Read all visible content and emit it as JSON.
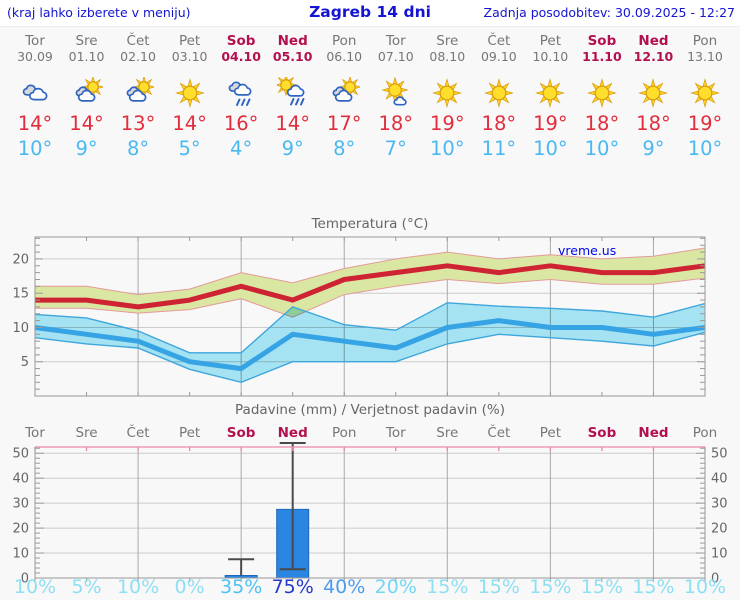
{
  "header": {
    "menu_hint": "(kraj lahko izberete v meniju)",
    "title": "Zagreb 14 dni",
    "last_update": "Zadnja posodobitev: 30.09.2025 - 12:27"
  },
  "watermark": "vreme.us",
  "colors": {
    "header_text": "#1414d2",
    "weekday": "#767676",
    "weekend": "#b3104f",
    "tmax": "#e02d3c",
    "tmin": "#4ab9f2",
    "chart_title": "#666666",
    "axis": "#999999",
    "grid_h": "#cccccc",
    "grid_v": "#aaaaaa",
    "temp_line_max": "#ce2333",
    "temp_band_max": "#d9e7a3",
    "temp_band_max_edge": "#e59a9a",
    "temp_line_min": "#36a3e4",
    "temp_band_min": "#a6e3f2",
    "temp_band_min_edge": "#3ea6dc",
    "bar_fill": "#2a85e3",
    "bar_edge": "#1f66bb",
    "whisker": "#4a4a4a",
    "precip_top_border": "#ea86aa",
    "watermark": "#0009e8"
  },
  "days": [
    {
      "name": "Tor",
      "date": "30.09",
      "weekend": false,
      "icon": "cloudy",
      "tmax": "14°",
      "tmin": "10°",
      "prob": "10%",
      "prob_color": "#8ddff3"
    },
    {
      "name": "Sre",
      "date": "01.10",
      "weekend": false,
      "icon": "partly-sunny",
      "tmax": "14°",
      "tmin": "9°",
      "prob": "5%",
      "prob_color": "#8ddff3"
    },
    {
      "name": "Čet",
      "date": "02.10",
      "weekend": false,
      "icon": "partly-sunny",
      "tmax": "13°",
      "tmin": "8°",
      "prob": "10%",
      "prob_color": "#8ddff3"
    },
    {
      "name": "Pet",
      "date": "03.10",
      "weekend": false,
      "icon": "sunny",
      "tmax": "14°",
      "tmin": "5°",
      "prob": "0%",
      "prob_color": "#8ddff3"
    },
    {
      "name": "Sob",
      "date": "04.10",
      "weekend": true,
      "icon": "rain",
      "tmax": "16°",
      "tmin": "4°",
      "prob": "35%",
      "prob_color": "#4cc2f5"
    },
    {
      "name": "Ned",
      "date": "05.10",
      "weekend": true,
      "icon": "sun-rain",
      "tmax": "14°",
      "tmin": "9°",
      "prob": "75%",
      "prob_color": "#2438cf"
    },
    {
      "name": "Pon",
      "date": "06.10",
      "weekend": false,
      "icon": "partly-sunny",
      "tmax": "17°",
      "tmin": "8°",
      "prob": "40%",
      "prob_color": "#4b9cec"
    },
    {
      "name": "Tor",
      "date": "07.10",
      "weekend": false,
      "icon": "mostly-sunny",
      "tmax": "18°",
      "tmin": "7°",
      "prob": "20%",
      "prob_color": "#72d7f2"
    },
    {
      "name": "Sre",
      "date": "08.10",
      "weekend": false,
      "icon": "sunny",
      "tmax": "19°",
      "tmin": "10°",
      "prob": "15%",
      "prob_color": "#8ddff3"
    },
    {
      "name": "Čet",
      "date": "09.10",
      "weekend": false,
      "icon": "sunny",
      "tmax": "18°",
      "tmin": "11°",
      "prob": "15%",
      "prob_color": "#8ddff3"
    },
    {
      "name": "Pet",
      "date": "10.10",
      "weekend": false,
      "icon": "sunny",
      "tmax": "19°",
      "tmin": "10°",
      "prob": "15%",
      "prob_color": "#8ddff3"
    },
    {
      "name": "Sob",
      "date": "11.10",
      "weekend": true,
      "icon": "sunny",
      "tmax": "18°",
      "tmin": "10°",
      "prob": "15%",
      "prob_color": "#8ddff3"
    },
    {
      "name": "Ned",
      "date": "12.10",
      "weekend": true,
      "icon": "sunny",
      "tmax": "18°",
      "tmin": "9°",
      "prob": "15%",
      "prob_color": "#8ddff3"
    },
    {
      "name": "Pon",
      "date": "13.10",
      "weekend": false,
      "icon": "sunny",
      "tmax": "19°",
      "tmin": "10°",
      "prob": "10%",
      "prob_color": "#8ddff3"
    }
  ],
  "chart_data": [
    {
      "type": "line",
      "title": "Temperatura (°C)",
      "ylim": [
        0,
        23.2
      ],
      "yticks": [
        5,
        10,
        15,
        20
      ],
      "grid": true,
      "categories": [
        "30.09",
        "01.10",
        "02.10",
        "03.10",
        "04.10",
        "05.10",
        "06.10",
        "07.10",
        "08.10",
        "09.10",
        "10.10",
        "11.10",
        "12.10",
        "13.10"
      ],
      "series": [
        {
          "name": "max",
          "values": [
            14,
            14,
            13,
            14,
            16,
            14,
            17,
            18,
            19,
            18,
            19,
            18,
            18,
            19
          ]
        },
        {
          "name": "min",
          "values": [
            10,
            9,
            8,
            5,
            4,
            9,
            8,
            7,
            10,
            11,
            10,
            10,
            9,
            10
          ]
        }
      ],
      "bands": {
        "max_upper": [
          16,
          16,
          14.8,
          15.6,
          18,
          16.5,
          18.6,
          20,
          21,
          20,
          20.6,
          20,
          20.4,
          21.6
        ],
        "max_lower": [
          12.8,
          12.8,
          12.1,
          12.6,
          14.2,
          11.5,
          14.8,
          16,
          17,
          16.4,
          17,
          16.3,
          16.3,
          17.2
        ],
        "min_upper": [
          11.9,
          11.4,
          9.5,
          6.3,
          6.3,
          13,
          10.4,
          9.6,
          13.6,
          13.1,
          12.8,
          12.4,
          11.5,
          13.5
        ],
        "min_lower": [
          8.5,
          7.6,
          7,
          3.9,
          2,
          5,
          5,
          5,
          7.6,
          9,
          8.5,
          8,
          7.3,
          9.3
        ]
      }
    },
    {
      "type": "bar",
      "title": "Padavine (mm) / Verjetnost padavin (%)",
      "ylim": [
        0,
        52.5
      ],
      "yticks": [
        0,
        10,
        20,
        30,
        40,
        50
      ],
      "grid": true,
      "categories": [
        "Tor",
        "Sre",
        "Čet",
        "Pet",
        "Sob",
        "Ned",
        "Pon",
        "Tor",
        "Sre",
        "Čet",
        "Pet",
        "Sob",
        "Ned",
        "Pon"
      ],
      "values": [
        0,
        0,
        0,
        0,
        1,
        27.5,
        0,
        0,
        0,
        0,
        0,
        0,
        0,
        0
      ],
      "bars": [
        {
          "day_index": 4,
          "amount": 1,
          "whisker_high": 7.5
        },
        {
          "day_index": 5,
          "amount": 27.5,
          "whisker_low": 3.5,
          "whisker_high": 55,
          "whisker_clipped": true
        }
      ],
      "probabilities": [
        "10%",
        "5%",
        "10%",
        "0%",
        "35%",
        "75%",
        "40%",
        "20%",
        "15%",
        "15%",
        "15%",
        "15%",
        "15%",
        "10%"
      ]
    }
  ]
}
